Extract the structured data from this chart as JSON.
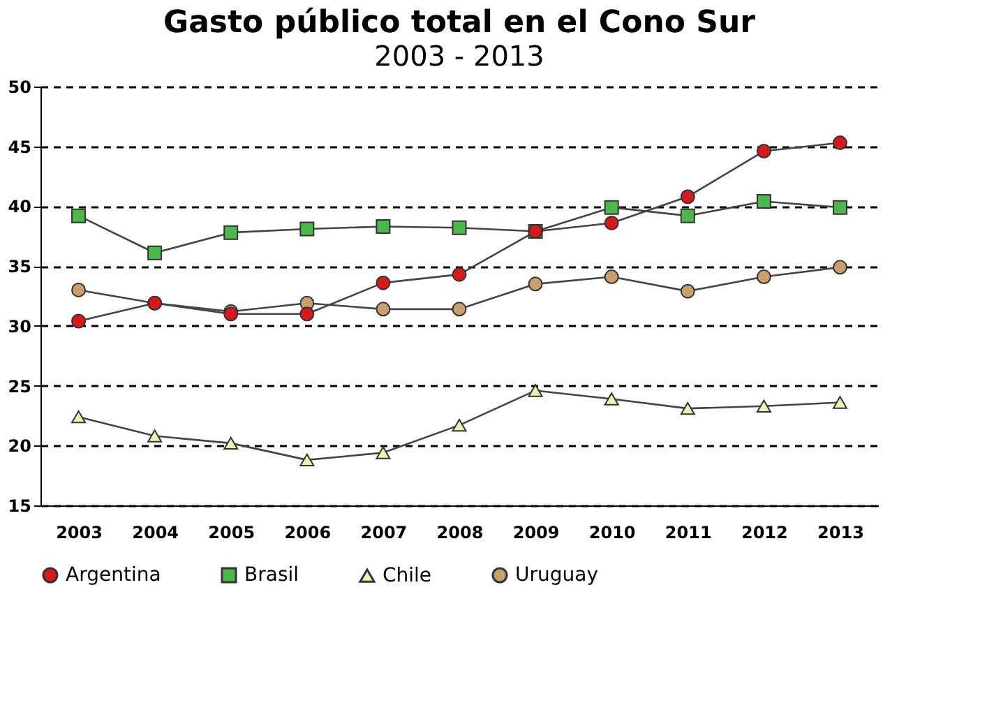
{
  "chart_data": {
    "type": "line",
    "title": "Gasto público total en el Cono Sur",
    "subtitle": "2003 - 2013",
    "categories": [
      "2003",
      "2004",
      "2005",
      "2006",
      "2007",
      "2008",
      "2009",
      "2010",
      "2011",
      "2012",
      "2013"
    ],
    "series": [
      {
        "name": "Argentina",
        "color": "#d7191c",
        "marker": "circle",
        "values": [
          30.4,
          31.9,
          31.0,
          31.0,
          33.6,
          34.3,
          37.9,
          38.6,
          40.8,
          44.6,
          45.3
        ]
      },
      {
        "name": "Brasil",
        "color": "#4cb84c",
        "marker": "square",
        "values": [
          39.2,
          36.1,
          37.8,
          38.1,
          38.3,
          38.2,
          37.9,
          39.9,
          39.2,
          40.4,
          39.9
        ]
      },
      {
        "name": "Chile",
        "color": "#f0f0b0",
        "marker": "triangle",
        "values": [
          22.4,
          20.8,
          20.2,
          18.8,
          19.4,
          21.7,
          24.6,
          23.9,
          23.1,
          23.3,
          23.6
        ]
      },
      {
        "name": "Uruguay",
        "color": "#c8a070",
        "marker": "circle",
        "values": [
          33.0,
          31.9,
          31.2,
          31.9,
          31.4,
          31.4,
          33.5,
          34.1,
          32.9,
          34.1,
          34.9
        ]
      }
    ],
    "ylim": [
      15,
      50
    ],
    "yticks": [
      15,
      20,
      25,
      30,
      35,
      40,
      45,
      50
    ],
    "grid": "y",
    "legend": "bottom",
    "line_style": "solid"
  }
}
